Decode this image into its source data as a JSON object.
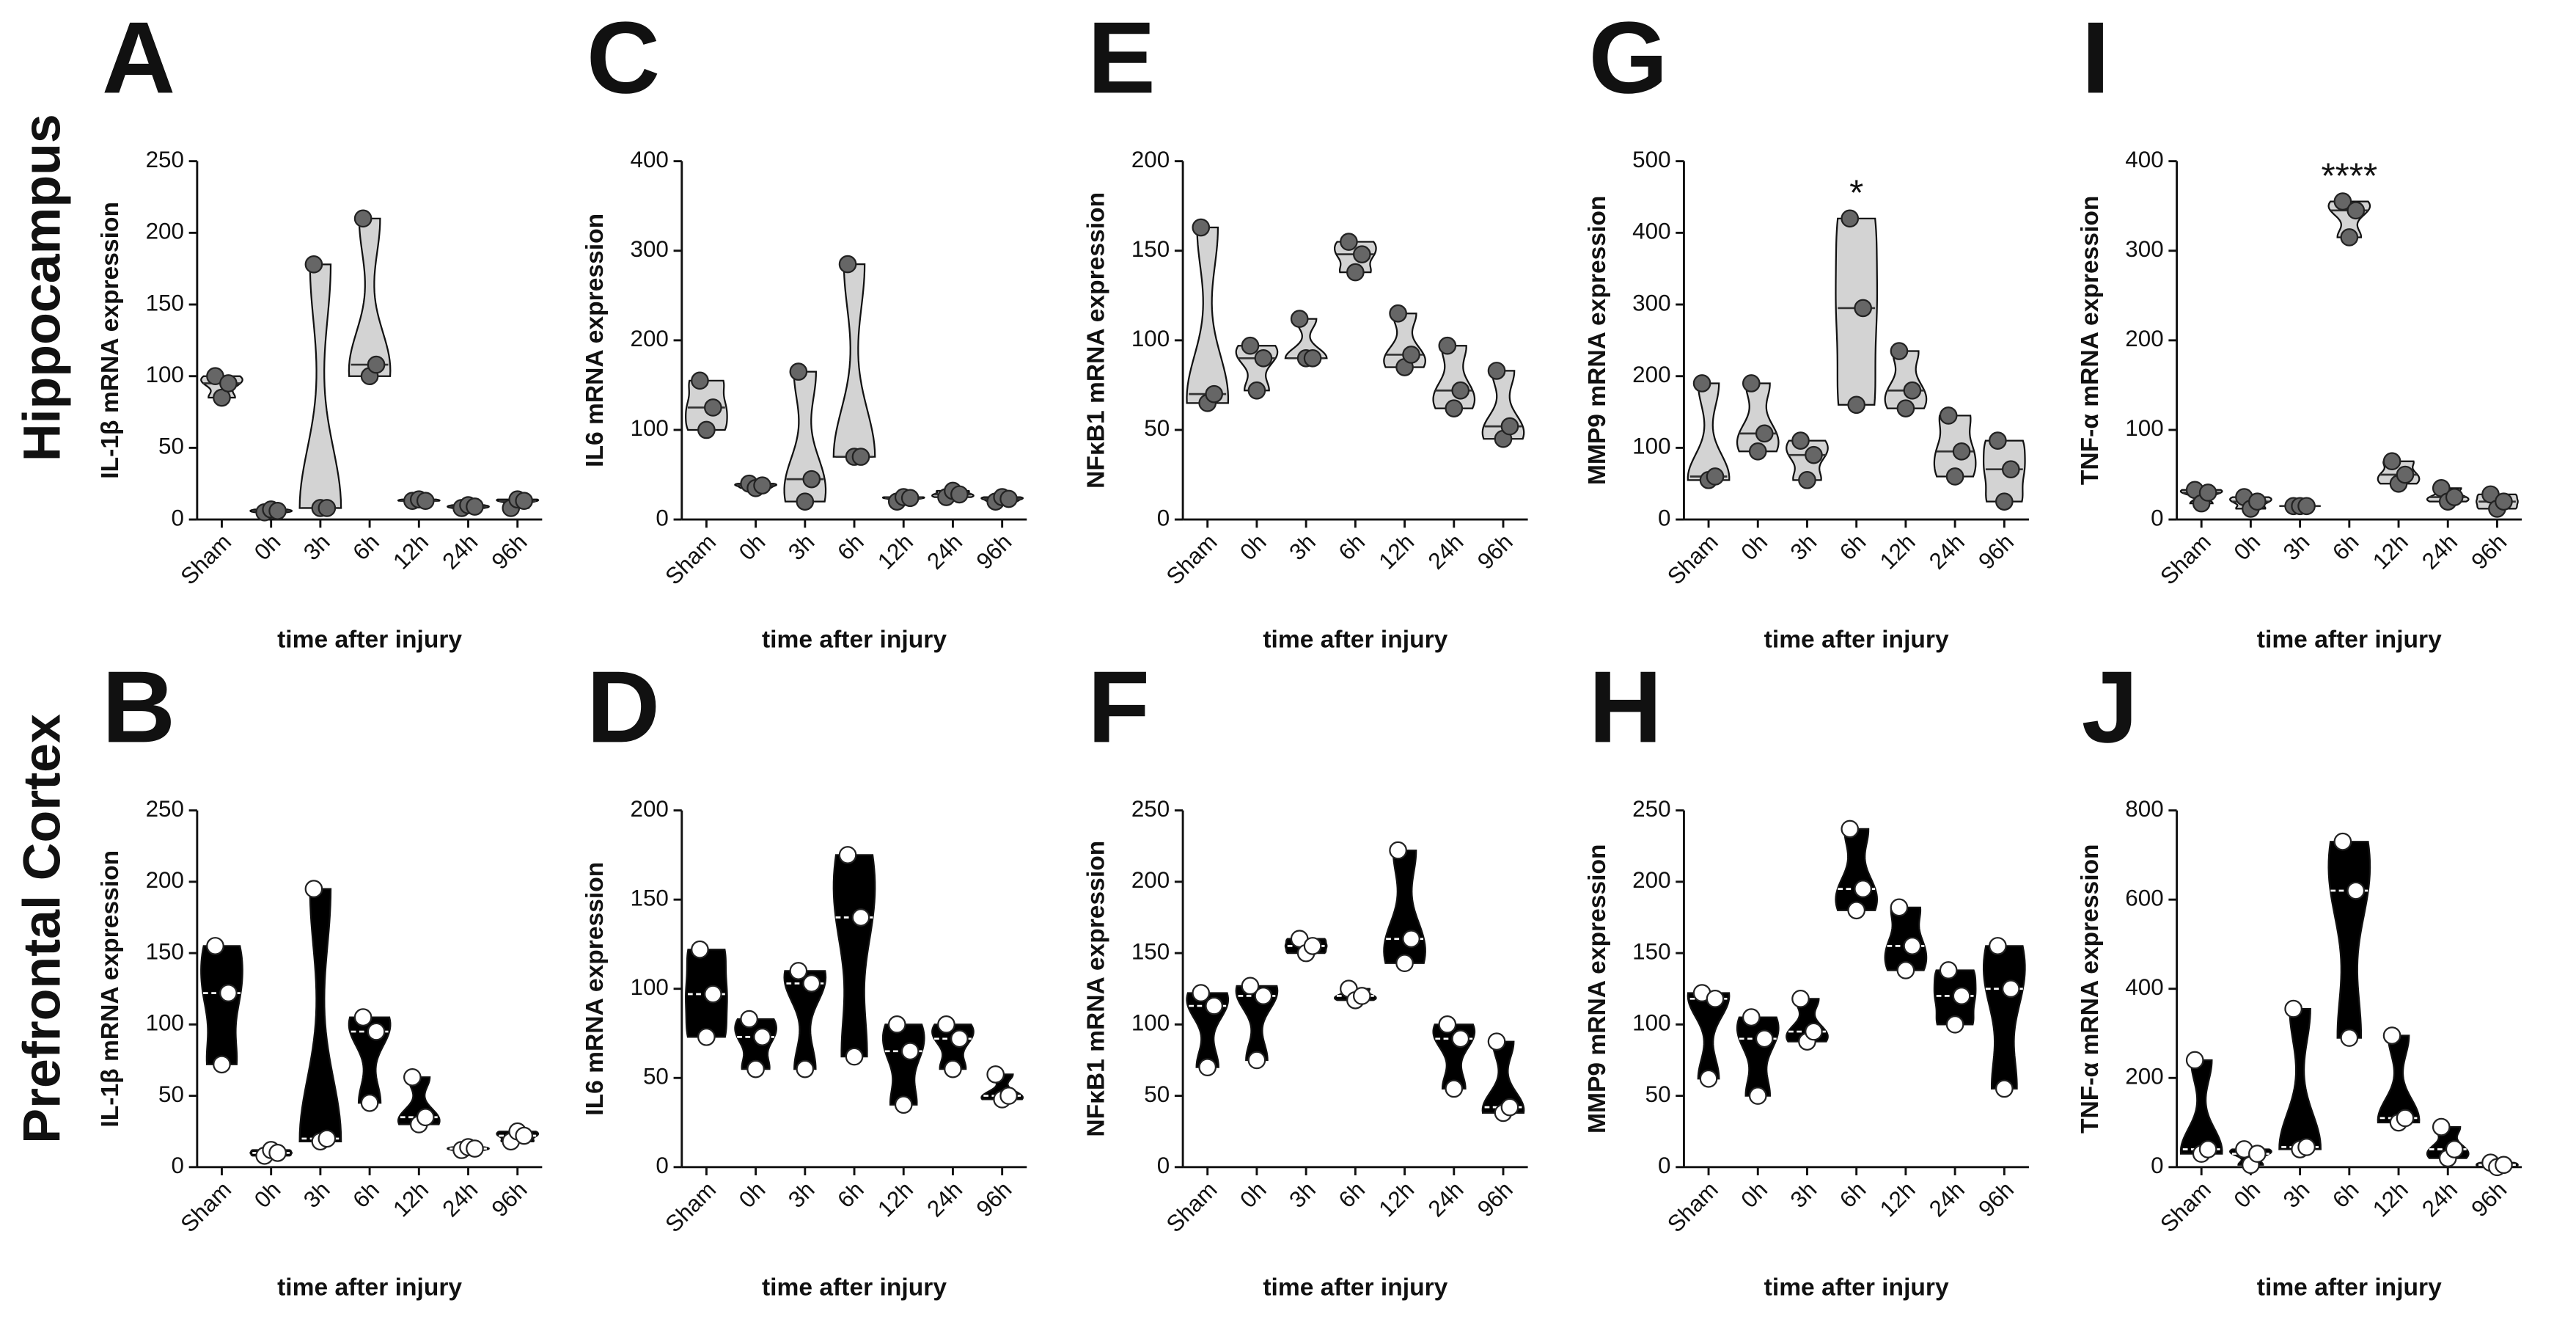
{
  "row_labels": [
    "Hippocampus",
    "Prefrontal Cortex"
  ],
  "chart_data": [
    {
      "type": "violin",
      "panel": "A",
      "ylabel": "IL-1β mRNA expression",
      "xlabel": "time after injury",
      "color": "#d3d3d3",
      "point_color": "#666666",
      "categories": [
        "Sham",
        "0h",
        "3h",
        "6h",
        "12h",
        "24h",
        "96h"
      ],
      "values": [
        [
          100,
          85,
          95
        ],
        [
          5,
          7,
          6
        ],
        [
          178,
          8,
          8
        ],
        [
          210,
          100,
          108
        ],
        [
          13,
          14,
          13
        ],
        [
          8,
          10,
          9
        ],
        [
          8,
          14,
          13
        ]
      ],
      "ylim": [
        0,
        250
      ],
      "yticks": [
        0,
        50,
        100,
        150,
        200,
        250
      ]
    },
    {
      "type": "violin",
      "panel": "C",
      "ylabel": "IL6 mRNA expression",
      "xlabel": "time after injury",
      "color": "#d3d3d3",
      "point_color": "#666666",
      "categories": [
        "Sham",
        "0h",
        "3h",
        "6h",
        "12h",
        "24h",
        "96h"
      ],
      "values": [
        [
          155,
          100,
          125
        ],
        [
          40,
          35,
          38
        ],
        [
          165,
          20,
          45
        ],
        [
          285,
          70,
          70
        ],
        [
          20,
          25,
          24
        ],
        [
          25,
          32,
          28
        ],
        [
          20,
          25,
          23
        ]
      ],
      "ylim": [
        0,
        400
      ],
      "yticks": [
        0,
        100,
        200,
        300,
        400
      ]
    },
    {
      "type": "violin",
      "panel": "E",
      "ylabel": "NFκB1 mRNA expression",
      "xlabel": "time after injury",
      "color": "#d3d3d3",
      "point_color": "#666666",
      "categories": [
        "Sham",
        "0h",
        "3h",
        "6h",
        "12h",
        "24h",
        "96h"
      ],
      "values": [
        [
          163,
          65,
          70
        ],
        [
          97,
          72,
          90
        ],
        [
          112,
          90,
          90
        ],
        [
          155,
          138,
          148
        ],
        [
          115,
          85,
          92
        ],
        [
          97,
          62,
          72
        ],
        [
          83,
          45,
          52
        ]
      ],
      "ylim": [
        0,
        200
      ],
      "yticks": [
        0,
        50,
        100,
        150,
        200
      ]
    },
    {
      "type": "violin",
      "panel": "G",
      "ylabel": "MMP9 mRNA expression",
      "xlabel": "time after injury",
      "color": "#d3d3d3",
      "point_color": "#666666",
      "categories": [
        "Sham",
        "0h",
        "3h",
        "6h",
        "12h",
        "24h",
        "96h"
      ],
      "values": [
        [
          190,
          55,
          60
        ],
        [
          190,
          95,
          120
        ],
        [
          110,
          55,
          90
        ],
        [
          420,
          160,
          295
        ],
        [
          235,
          155,
          180
        ],
        [
          145,
          60,
          95
        ],
        [
          110,
          25,
          70
        ]
      ],
      "ylim": [
        0,
        500
      ],
      "yticks": [
        0,
        100,
        200,
        300,
        400,
        500
      ],
      "annotations": [
        {
          "text": "*",
          "category": "6h"
        }
      ]
    },
    {
      "type": "violin",
      "panel": "I",
      "ylabel": "TNF-α mRNA expression",
      "xlabel": "time after injury",
      "color": "#d3d3d3",
      "point_color": "#666666",
      "categories": [
        "Sham",
        "0h",
        "3h",
        "6h",
        "12h",
        "24h",
        "96h"
      ],
      "values": [
        [
          33,
          18,
          30
        ],
        [
          25,
          12,
          20
        ],
        [
          15,
          15,
          15
        ],
        [
          355,
          315,
          345
        ],
        [
          65,
          40,
          50
        ],
        [
          35,
          20,
          25
        ],
        [
          28,
          12,
          20
        ]
      ],
      "ylim": [
        0,
        400
      ],
      "yticks": [
        0,
        100,
        200,
        300,
        400
      ],
      "annotations": [
        {
          "text": "****",
          "category": "6h"
        }
      ]
    },
    {
      "type": "violin",
      "panel": "B",
      "ylabel": "IL-1β mRNA expression",
      "xlabel": "time after injury",
      "color": "#000000",
      "point_color": "#ffffff",
      "categories": [
        "Sham",
        "0h",
        "3h",
        "6h",
        "12h",
        "24h",
        "96h"
      ],
      "values": [
        [
          155,
          72,
          122
        ],
        [
          8,
          12,
          10
        ],
        [
          195,
          18,
          20
        ],
        [
          105,
          45,
          95
        ],
        [
          63,
          30,
          35
        ],
        [
          12,
          14,
          13
        ],
        [
          18,
          25,
          22
        ]
      ],
      "ylim": [
        0,
        250
      ],
      "yticks": [
        0,
        50,
        100,
        150,
        200,
        250
      ]
    },
    {
      "type": "violin",
      "panel": "D",
      "ylabel": "IL6 mRNA expression",
      "xlabel": "time after injury",
      "color": "#000000",
      "point_color": "#ffffff",
      "categories": [
        "Sham",
        "0h",
        "3h",
        "6h",
        "12h",
        "24h",
        "96h"
      ],
      "values": [
        [
          122,
          73,
          97
        ],
        [
          83,
          55,
          73
        ],
        [
          110,
          55,
          103
        ],
        [
          175,
          62,
          140
        ],
        [
          80,
          35,
          65
        ],
        [
          80,
          55,
          72
        ],
        [
          52,
          38,
          40
        ]
      ],
      "ylim": [
        0,
        200
      ],
      "yticks": [
        0,
        50,
        100,
        150,
        200
      ]
    },
    {
      "type": "violin",
      "panel": "F",
      "ylabel": "NFκB1 mRNA expression",
      "xlabel": "time after injury",
      "color": "#000000",
      "point_color": "#ffffff",
      "categories": [
        "Sham",
        "0h",
        "3h",
        "6h",
        "12h",
        "24h",
        "96h"
      ],
      "values": [
        [
          122,
          70,
          113
        ],
        [
          127,
          75,
          120
        ],
        [
          160,
          150,
          155
        ],
        [
          125,
          117,
          120
        ],
        [
          222,
          143,
          160
        ],
        [
          100,
          55,
          90
        ],
        [
          88,
          38,
          42
        ]
      ],
      "ylim": [
        0,
        250
      ],
      "yticks": [
        0,
        50,
        100,
        150,
        200,
        250
      ]
    },
    {
      "type": "violin",
      "panel": "H",
      "ylabel": "MMP9 mRNA expression",
      "xlabel": "time after injury",
      "color": "#000000",
      "point_color": "#ffffff",
      "categories": [
        "Sham",
        "0h",
        "3h",
        "6h",
        "12h",
        "24h",
        "96h"
      ],
      "values": [
        [
          122,
          62,
          118
        ],
        [
          105,
          50,
          90
        ],
        [
          118,
          88,
          95
        ],
        [
          237,
          180,
          195
        ],
        [
          182,
          138,
          155
        ],
        [
          138,
          100,
          120
        ],
        [
          155,
          55,
          125
        ]
      ],
      "ylim": [
        0,
        250
      ],
      "yticks": [
        0,
        50,
        100,
        150,
        200,
        250
      ]
    },
    {
      "type": "violin",
      "panel": "J",
      "ylabel": "TNF-α mRNA expression",
      "xlabel": "time after injury",
      "color": "#000000",
      "point_color": "#ffffff",
      "categories": [
        "Sham",
        "0h",
        "3h",
        "6h",
        "12h",
        "24h",
        "96h"
      ],
      "values": [
        [
          240,
          30,
          40
        ],
        [
          40,
          5,
          30
        ],
        [
          355,
          40,
          45
        ],
        [
          730,
          290,
          620
        ],
        [
          295,
          100,
          110
        ],
        [
          90,
          20,
          40
        ],
        [
          10,
          0,
          5
        ]
      ],
      "ylim": [
        0,
        800
      ],
      "yticks": [
        0,
        200,
        400,
        600,
        800
      ]
    }
  ]
}
